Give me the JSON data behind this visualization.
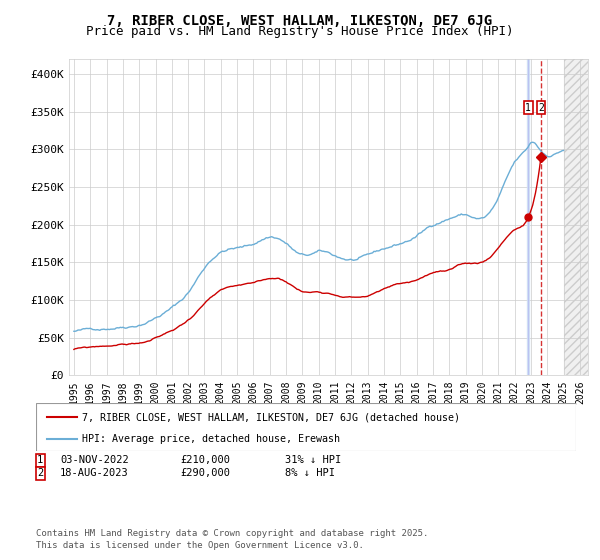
{
  "title": "7, RIBER CLOSE, WEST HALLAM, ILKESTON, DE7 6JG",
  "subtitle": "Price paid vs. HM Land Registry's House Price Index (HPI)",
  "ylim": [
    0,
    420000
  ],
  "yticks": [
    0,
    50000,
    100000,
    150000,
    200000,
    250000,
    300000,
    350000,
    400000
  ],
  "ytick_labels": [
    "£0",
    "£50K",
    "£100K",
    "£150K",
    "£200K",
    "£250K",
    "£300K",
    "£350K",
    "£400K"
  ],
  "xlim_start": 1994.7,
  "xlim_end": 2026.5,
  "hpi_color": "#6baed6",
  "price_color": "#cc0000",
  "transaction1_date": 2022.84,
  "transaction1_price": 210000,
  "transaction1_label": "1",
  "transaction2_date": 2023.62,
  "transaction2_price": 290000,
  "transaction2_label": "2",
  "legend_line1": "7, RIBER CLOSE, WEST HALLAM, ILKESTON, DE7 6JG (detached house)",
  "legend_line2": "HPI: Average price, detached house, Erewash",
  "annotation1_date": "03-NOV-2022",
  "annotation1_price": "£210,000",
  "annotation1_pct": "31% ↓ HPI",
  "annotation2_date": "18-AUG-2023",
  "annotation2_price": "£290,000",
  "annotation2_pct": "8% ↓ HPI",
  "footer": "Contains HM Land Registry data © Crown copyright and database right 2025.\nThis data is licensed under the Open Government Licence v3.0.",
  "background_color": "#ffffff",
  "grid_color": "#cccccc",
  "future_start": 2025.0,
  "title_fontsize": 10,
  "subtitle_fontsize": 9
}
